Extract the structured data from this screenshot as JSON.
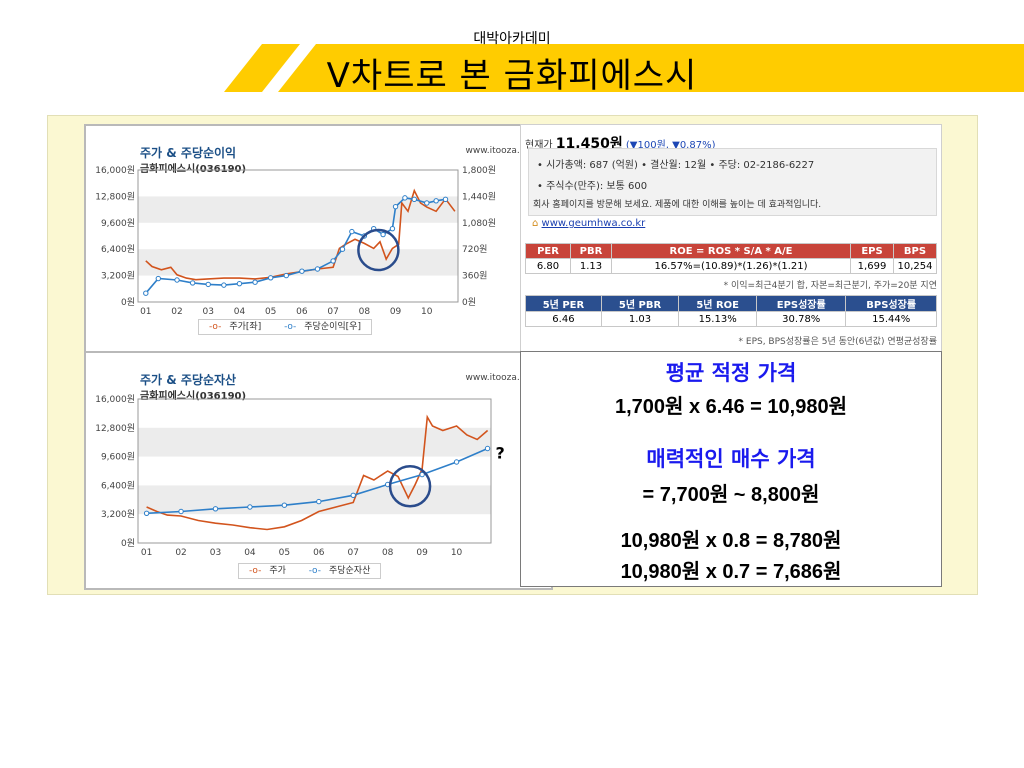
{
  "header": {
    "brand": "대박아카데미",
    "title": "V차트로 본 금화피에스시",
    "accent": "#ffcc00"
  },
  "chart1": {
    "title": "주가 & 주당순이익",
    "subtitle": "금화피에스시(036190)",
    "source": "www.itooza.com",
    "legend": {
      "price": "주가[좌]",
      "eps": "주당순이익[우]"
    }
  },
  "chart2": {
    "title": "주가 & 주당순자산",
    "subtitle": "금화피에스시(036190)",
    "source": "www.itooza.com",
    "legend": {
      "price": "주가",
      "bps": "주당순자산"
    },
    "annotation": "?"
  },
  "chart_data": [
    {
      "type": "line",
      "title": "주가 & 주당순이익",
      "x_ticks": [
        "01",
        "02",
        "03",
        "04",
        "05",
        "06",
        "07",
        "08",
        "09",
        "10"
      ],
      "y_left_ticks": [
        "16,000원",
        "12,800원",
        "9,600원",
        "6,400원",
        "3,200원",
        "0원"
      ],
      "y_right_ticks": [
        "1,800원",
        "1,440원",
        "1,080원",
        "720원",
        "360원",
        "0원"
      ],
      "ylim_left": [
        0,
        16000
      ],
      "ylim_right": [
        0,
        1800
      ],
      "series": [
        {
          "name": "주가[좌]",
          "axis": "left",
          "color": "#d2541d",
          "x": [
            2001.0,
            2001.2,
            2001.5,
            2001.8,
            2002.0,
            2002.3,
            2002.6,
            2003.0,
            2003.5,
            2004.0,
            2004.5,
            2005.0,
            2005.5,
            2006.0,
            2006.5,
            2007.0,
            2007.2,
            2007.4,
            2007.7,
            2008.0,
            2008.3,
            2008.5,
            2008.7,
            2008.9,
            2009.1,
            2009.2,
            2009.4,
            2009.6,
            2009.8,
            2010.0,
            2010.3,
            2010.6,
            2010.9
          ],
          "values": [
            5000,
            4300,
            3900,
            4200,
            3300,
            2900,
            2700,
            2800,
            2900,
            2900,
            2800,
            3000,
            3400,
            3700,
            4000,
            4200,
            6500,
            7000,
            7600,
            7100,
            6500,
            7300,
            5200,
            6500,
            7000,
            12000,
            11000,
            13500,
            12000,
            11500,
            11000,
            12500,
            11000
          ]
        },
        {
          "name": "주당순이익[우]",
          "axis": "right",
          "color": "#2e7fc9",
          "x": [
            2001.0,
            2001.4,
            2002.0,
            2002.5,
            2003.0,
            2003.5,
            2004.0,
            2004.5,
            2005.0,
            2005.5,
            2006.0,
            2006.5,
            2007.0,
            2007.3,
            2007.6,
            2008.0,
            2008.3,
            2008.6,
            2008.9,
            2009.0,
            2009.3,
            2009.6,
            2010.0,
            2010.3,
            2010.6
          ],
          "values": [
            120,
            320,
            300,
            260,
            240,
            230,
            250,
            270,
            330,
            360,
            420,
            450,
            560,
            720,
            960,
            900,
            1000,
            920,
            1000,
            1300,
            1420,
            1400,
            1350,
            1380,
            1400
          ]
        }
      ]
    },
    {
      "type": "line",
      "title": "주가 & 주당순자산",
      "x_ticks": [
        "01",
        "02",
        "03",
        "04",
        "05",
        "06",
        "07",
        "08",
        "09",
        "10"
      ],
      "y_ticks": [
        "16,000원",
        "12,800원",
        "9,600원",
        "6,400원",
        "3,200원",
        "0원"
      ],
      "ylim": [
        0,
        16000
      ],
      "series": [
        {
          "name": "주가",
          "color": "#d2541d",
          "x": [
            2001.0,
            2001.3,
            2001.6,
            2002.0,
            2002.5,
            2003.0,
            2003.5,
            2004.0,
            2004.5,
            2005.0,
            2005.5,
            2006.0,
            2006.5,
            2007.0,
            2007.3,
            2007.6,
            2008.0,
            2008.3,
            2008.6,
            2008.8,
            2009.0,
            2009.15,
            2009.3,
            2009.6,
            2010.0,
            2010.3,
            2010.6,
            2010.9
          ],
          "values": [
            4000,
            3500,
            3100,
            3000,
            2500,
            2200,
            2000,
            1700,
            1500,
            1800,
            2500,
            3500,
            4000,
            4500,
            7500,
            7000,
            8000,
            7400,
            5000,
            6500,
            8200,
            14000,
            13000,
            12500,
            13000,
            12000,
            11500,
            12500
          ]
        },
        {
          "name": "주당순자산",
          "color": "#2e7fc9",
          "x": [
            2001.0,
            2002.0,
            2003.0,
            2004.0,
            2005.0,
            2006.0,
            2007.0,
            2008.0,
            2009.0,
            2010.0,
            2010.9
          ],
          "values": [
            3300,
            3500,
            3800,
            4000,
            4200,
            4600,
            5300,
            6500,
            7600,
            9000,
            10500
          ]
        }
      ]
    }
  ],
  "stock": {
    "price_label": "현재가",
    "price": "11,450원",
    "change_text": "(▼100원, ▼0.87%)",
    "info1": "• 시가총액: 687 (억원)  • 결산월: 12월  • 주당: 02-2186-6227",
    "info2": "• 주식수(만주): 보통 600",
    "info3": "회사 홈페이지를 방문해 보세요. 제품에 대한 이해를 높이는 데 효과적입니다.",
    "website": "www.geumhwa.co.kr"
  },
  "table1": {
    "headers": [
      "PER",
      "PBR",
      "ROE = ROS * S/A * A/E",
      "EPS",
      "BPS"
    ],
    "values": [
      "6.80",
      "1.13",
      "16.57%=(10.89)*(1.26)*(1.21)",
      "1,699",
      "10,254"
    ],
    "note": "* 이익=최근4분기 합, 자본=최근분기, 주가=20분 지연"
  },
  "table2": {
    "headers": [
      "5년 PER",
      "5년 PBR",
      "5년 ROE",
      "EPS성장률",
      "BPS성장률"
    ],
    "values": [
      "6.46",
      "1.03",
      "15.13%",
      "30.78%",
      "15.44%"
    ],
    "note": "* EPS, BPS성장률은 5년 동안(6년값) 연평균성장률"
  },
  "calc": {
    "h1": "평균 적정 가격",
    "l1": "1,700원 x 6.46 = 10,980원",
    "h2": "매력적인 매수 가격",
    "l2": "= 7,700원 ~ 8,800원",
    "l3": "10,980원 x 0.8 = 8,780원",
    "l4": "10,980원 x 0.7 = 7,686원"
  }
}
